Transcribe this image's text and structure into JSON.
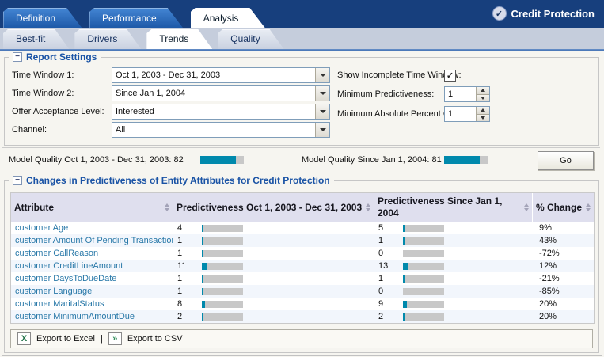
{
  "app": {
    "title": "Credit Protection"
  },
  "icons": {
    "title_check": "✓",
    "collapse": "−",
    "checkbox_check": "✓",
    "excel_glyph": "X",
    "csv_glyph": "»"
  },
  "main_tabs": [
    {
      "label": "Definition",
      "active": false
    },
    {
      "label": "Performance",
      "active": false
    },
    {
      "label": "Analysis",
      "active": true
    }
  ],
  "sub_tabs": [
    {
      "label": "Best-fit",
      "active": false
    },
    {
      "label": "Drivers",
      "active": false
    },
    {
      "label": "Trends",
      "active": true
    },
    {
      "label": "Quality",
      "active": false
    }
  ],
  "report_settings": {
    "legend": "Report Settings",
    "fields_left": [
      {
        "label": "Time Window 1:",
        "value": "Oct 1, 2003 - Dec 31, 2003"
      },
      {
        "label": "Time Window 2:",
        "value": "Since Jan 1, 2004"
      },
      {
        "label": "Offer Acceptance Level:",
        "value": "Interested"
      },
      {
        "label": "Channel:",
        "value": "All"
      }
    ],
    "fields_right": [
      {
        "label": "Show Incomplete Time Window:",
        "type": "checkbox",
        "checked": true
      },
      {
        "label": "Minimum Predictiveness:",
        "type": "spinner",
        "value": "1"
      },
      {
        "label": "Minimum Absolute Percent Change:",
        "type": "spinner",
        "value": "1"
      }
    ]
  },
  "model_quality": {
    "items": [
      {
        "label": "Model Quality Oct 1, 2003 - Dec 31, 2003: 82",
        "value": 82
      },
      {
        "label": "Model Quality Since Jan 1, 2004: 81",
        "value": 81
      }
    ],
    "go_label": "Go"
  },
  "changes": {
    "legend": "Changes in Predictiveness of Entity Attributes for Credit Protection",
    "columns": [
      "Attribute",
      "Predictiveness Oct 1, 2003 - Dec 31, 2003",
      "Predictiveness Since Jan 1, 2004",
      "% Change"
    ],
    "rows": [
      {
        "attribute": "customer Age",
        "p1": 4,
        "p2": 5,
        "change": "9%"
      },
      {
        "attribute": "customer Amount Of Pending Transactions",
        "p1": 1,
        "p2": 1,
        "change": "43%"
      },
      {
        "attribute": "customer CallReason",
        "p1": 1,
        "p2": 0,
        "change": "-72%"
      },
      {
        "attribute": "customer CreditLineAmount",
        "p1": 11,
        "p2": 13,
        "change": "12%"
      },
      {
        "attribute": "customer DaysToDueDate",
        "p1": 1,
        "p2": 1,
        "change": "-21%"
      },
      {
        "attribute": "customer Language",
        "p1": 1,
        "p2": 0,
        "change": "-85%"
      },
      {
        "attribute": "customer MaritalStatus",
        "p1": 8,
        "p2": 9,
        "change": "20%"
      },
      {
        "attribute": "customer MinimumAmountDue",
        "p1": 2,
        "p2": 2,
        "change": "20%"
      }
    ],
    "export_excel": "Export to Excel",
    "export_csv": "Export to CSV",
    "separator": "|"
  },
  "colors": {
    "accent": "#1A53A5",
    "bar_fill": "#0089AC",
    "bar_bg": "#C8C8C8",
    "header_navy": "#173F7D"
  }
}
